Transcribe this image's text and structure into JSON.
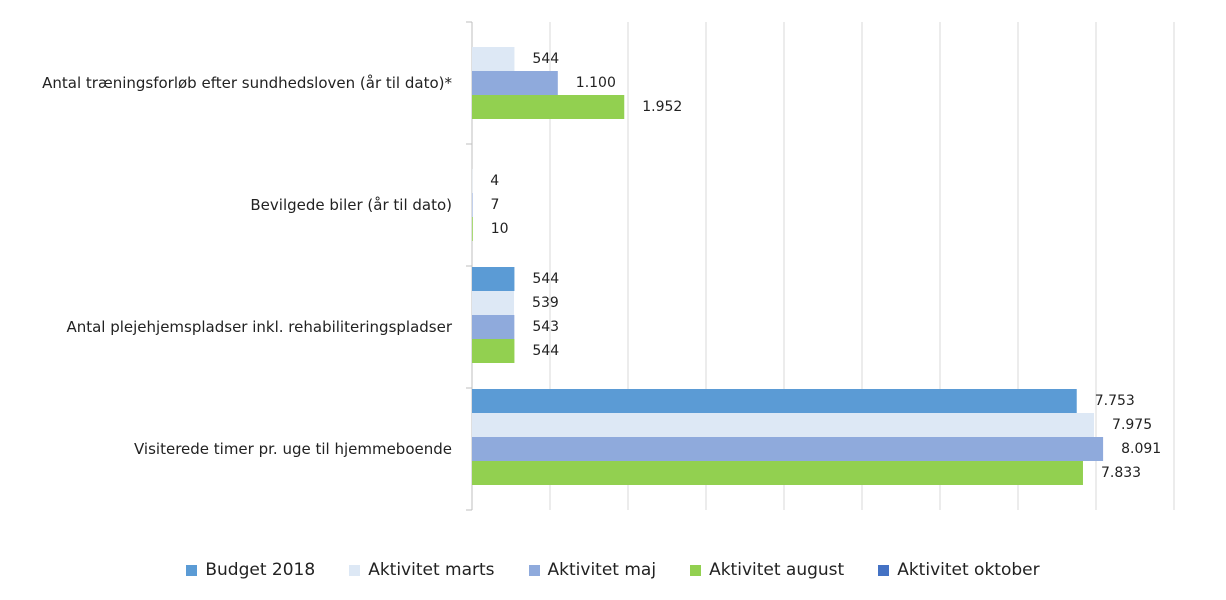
{
  "chart_data": {
    "type": "barh",
    "categories": [
      "Antal træningsforløb efter sundhedsloven (år til dato)*",
      "Bevilgede biler (år til dato)",
      "Antal plejehjemspladser inkl. rehabiliteringspladser",
      "Visiterede timer pr. uge til hjemmeboende"
    ],
    "series": [
      {
        "name": "Budget 2018",
        "color": "#5b9bd5",
        "values": [
          null,
          null,
          544,
          7753
        ],
        "value_labels": [
          null,
          null,
          "544",
          "7.753"
        ]
      },
      {
        "name": "Aktivitet marts",
        "color": "#dde8f5",
        "values": [
          544,
          4,
          539,
          7975
        ],
        "value_labels": [
          "544",
          "4",
          "539",
          "7.975"
        ]
      },
      {
        "name": "Aktivitet maj",
        "color": "#8faadc",
        "values": [
          1100,
          7,
          543,
          8091
        ],
        "value_labels": [
          "1.100",
          "7",
          "543",
          "8.091"
        ]
      },
      {
        "name": "Aktivitet august",
        "color": "#92d050",
        "values": [
          1952,
          10,
          544,
          7833
        ],
        "value_labels": [
          "1.952",
          "10",
          "544",
          "7.833"
        ]
      },
      {
        "name": "Aktivitet oktober",
        "color": "#4472c4",
        "values": [
          null,
          null,
          null,
          null
        ],
        "value_labels": [
          null,
          null,
          null,
          null
        ]
      }
    ],
    "xlim": [
      0,
      9000
    ],
    "xticks": [
      0,
      1000,
      2000,
      3000,
      4000,
      5000,
      6000,
      7000,
      8000,
      9000
    ],
    "grid": true
  }
}
